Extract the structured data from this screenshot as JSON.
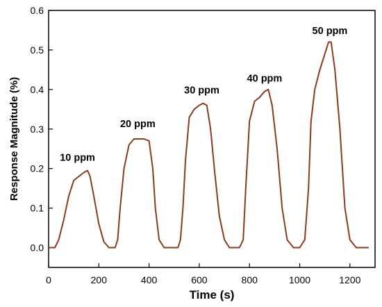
{
  "chart_data": {
    "type": "line",
    "title": "",
    "xlabel": "Time (s)",
    "ylabel": "Response Magnitude (%)",
    "xlim": [
      0,
      1300
    ],
    "ylim": [
      -0.05,
      0.6
    ],
    "xticks": [
      0,
      200,
      400,
      600,
      800,
      1000,
      1200
    ],
    "xtick_labels": [
      "0",
      "200",
      "400",
      "600",
      "800",
      "1000",
      "1200"
    ],
    "yticks": [
      0.0,
      0.1,
      0.2,
      0.3,
      0.4,
      0.5,
      0.6
    ],
    "ytick_labels": [
      "0.0",
      "0.1",
      "0.2",
      "0.3",
      "0.4",
      "0.5",
      "0.6"
    ],
    "grid": false,
    "line_color": "#8b3a1e",
    "series": [
      {
        "x": [
          0,
          25,
          40,
          60,
          80,
          100,
          120,
          140,
          155,
          165,
          180,
          200,
          220,
          240,
          255,
          265,
          275,
          285,
          300,
          320,
          340,
          360,
          380,
          400,
          415,
          425,
          440,
          460,
          480,
          500,
          515,
          525,
          535,
          545,
          560,
          580,
          600,
          615,
          630,
          645,
          660,
          680,
          700,
          720,
          740,
          760,
          775,
          785,
          800,
          820,
          840,
          860,
          875,
          890,
          910,
          930,
          950,
          975,
          1000,
          1020,
          1035,
          1045,
          1060,
          1080,
          1100,
          1115,
          1125,
          1140,
          1160,
          1180,
          1200,
          1225,
          1240,
          1260,
          1275
        ],
        "y": [
          0.0,
          0.0,
          0.02,
          0.07,
          0.13,
          0.17,
          0.18,
          0.19,
          0.195,
          0.18,
          0.13,
          0.06,
          0.015,
          0.0,
          0.0,
          0.0,
          0.02,
          0.1,
          0.2,
          0.26,
          0.275,
          0.275,
          0.275,
          0.27,
          0.2,
          0.1,
          0.02,
          0.0,
          0.0,
          0.0,
          0.0,
          0.02,
          0.1,
          0.22,
          0.33,
          0.35,
          0.36,
          0.365,
          0.36,
          0.3,
          0.2,
          0.08,
          0.02,
          0.0,
          0.0,
          0.0,
          0.02,
          0.15,
          0.32,
          0.37,
          0.38,
          0.395,
          0.4,
          0.36,
          0.25,
          0.1,
          0.02,
          0.0,
          0.0,
          0.02,
          0.15,
          0.32,
          0.4,
          0.45,
          0.49,
          0.52,
          0.52,
          0.45,
          0.3,
          0.1,
          0.02,
          0.0,
          0.0,
          0.0,
          0.0
        ]
      }
    ],
    "annotations": [
      {
        "text": "10 ppm",
        "x": 115,
        "y": 0.22
      },
      {
        "text": "20 ppm",
        "x": 355,
        "y": 0.305
      },
      {
        "text": "30 ppm",
        "x": 610,
        "y": 0.39
      },
      {
        "text": "40 ppm",
        "x": 860,
        "y": 0.42
      },
      {
        "text": "50 ppm",
        "x": 1120,
        "y": 0.54
      }
    ]
  }
}
